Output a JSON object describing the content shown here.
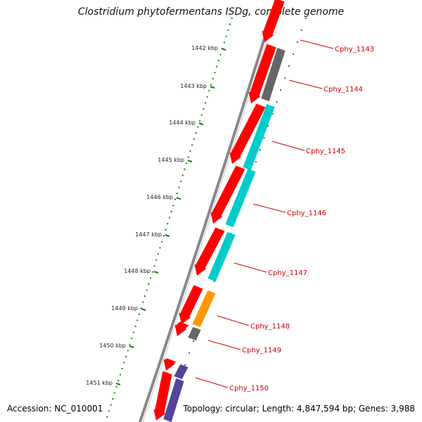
{
  "title": "Clostridium phytofermentans ISDg, complete genome",
  "footer": {
    "accession": "Accession: NC_010001",
    "summary": "Topology: circular; Length: 4,847,594 bp; Genes: 3,988"
  },
  "colors": {
    "cds": "#ff0000",
    "unclassified": "#666666",
    "category_a": "#00cccc",
    "category_b": "#ff9900",
    "category_c": "#554499",
    "tick": "#1a7a1a",
    "backbone": "#888888",
    "label": "#cc0000"
  },
  "scale": {
    "ticks": [
      {
        "label": "1442 kbp"
      },
      {
        "label": "1443 kbp"
      },
      {
        "label": "1444 kbp"
      },
      {
        "label": "1445 kbp"
      },
      {
        "label": "1446 kbp"
      },
      {
        "label": "1447 kbp"
      },
      {
        "label": "1448 kbp"
      },
      {
        "label": "1449 kbp"
      },
      {
        "label": "1450 kbp"
      },
      {
        "label": "1451 kbp"
      }
    ]
  },
  "genes": [
    {
      "label": "Cphy_1143",
      "category": "unclassified"
    },
    {
      "label": "Cphy_1144",
      "category": "unclassified"
    },
    {
      "label": "Cphy_1145",
      "category": "category_a"
    },
    {
      "label": "Cphy_1146",
      "category": "category_a"
    },
    {
      "label": "Cphy_1147",
      "category": "category_a"
    },
    {
      "label": "Cphy_1148",
      "category": "category_b"
    },
    {
      "label": "Cphy_1149",
      "category": "unclassified"
    },
    {
      "label": "Cphy_1150",
      "category": "category_c"
    }
  ]
}
